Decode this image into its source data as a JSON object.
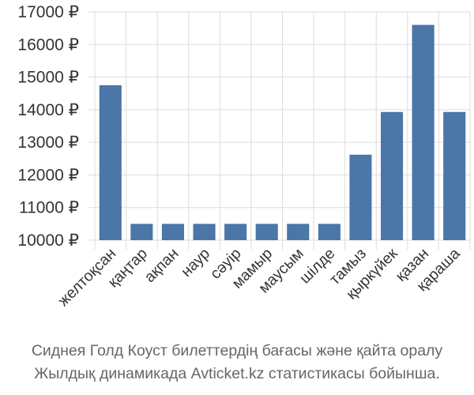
{
  "chart_data": {
    "type": "bar",
    "categories": [
      "желтоқсан",
      "қаңтар",
      "ақпан",
      "наур",
      "сәуір",
      "мамыр",
      "маусым",
      "шілде",
      "тамыз",
      "қыркүйек",
      "қазан",
      "қараша"
    ],
    "values": [
      14750,
      10500,
      10500,
      10500,
      10500,
      10500,
      10500,
      10500,
      12620,
      13930,
      16600,
      13930
    ],
    "ylim": [
      10000,
      17000
    ],
    "yticks": [
      10000,
      11000,
      12000,
      13000,
      14000,
      15000,
      16000,
      17000
    ],
    "y_tick_suffix": " ₽",
    "grid": true,
    "bar_color": "#4a76a8",
    "title": "",
    "xlabel": "",
    "ylabel": ""
  },
  "caption": {
    "line1": "Сиднея Голд Коуст билеттердің бағасы және қайта оралу",
    "line2": "Жылдық динамикада Avticket.kz статистикасы бойынша."
  }
}
